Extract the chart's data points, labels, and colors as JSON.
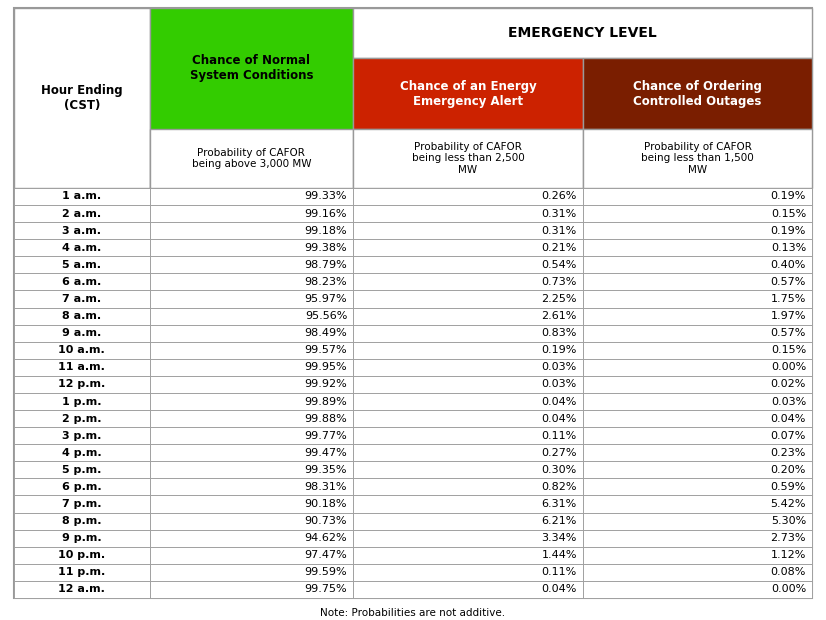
{
  "hours": [
    "1 a.m.",
    "2 a.m.",
    "3 a.m.",
    "4 a.m.",
    "5 a.m.",
    "6 a.m.",
    "7 a.m.",
    "8 a.m.",
    "9 a.m.",
    "10 a.m.",
    "11 a.m.",
    "12 p.m.",
    "1 p.m.",
    "2 p.m.",
    "3 p.m.",
    "4 p.m.",
    "5 p.m.",
    "6 p.m.",
    "7 p.m.",
    "8 p.m.",
    "9 p.m.",
    "10 p.m.",
    "11 p.m.",
    "12 a.m."
  ],
  "col1_values": [
    "99.33%",
    "99.16%",
    "99.18%",
    "99.38%",
    "98.79%",
    "98.23%",
    "95.97%",
    "95.56%",
    "98.49%",
    "99.57%",
    "99.95%",
    "99.92%",
    "99.89%",
    "99.88%",
    "99.77%",
    "99.47%",
    "99.35%",
    "98.31%",
    "90.18%",
    "90.73%",
    "94.62%",
    "97.47%",
    "99.59%",
    "99.75%"
  ],
  "col2_values": [
    "0.26%",
    "0.31%",
    "0.31%",
    "0.21%",
    "0.54%",
    "0.73%",
    "2.25%",
    "2.61%",
    "0.83%",
    "0.19%",
    "0.03%",
    "0.03%",
    "0.04%",
    "0.04%",
    "0.11%",
    "0.27%",
    "0.30%",
    "0.82%",
    "6.31%",
    "6.21%",
    "3.34%",
    "1.44%",
    "0.11%",
    "0.04%"
  ],
  "col3_values": [
    "0.19%",
    "0.15%",
    "0.19%",
    "0.13%",
    "0.40%",
    "0.57%",
    "1.75%",
    "1.97%",
    "0.57%",
    "0.15%",
    "0.00%",
    "0.02%",
    "0.03%",
    "0.04%",
    "0.07%",
    "0.23%",
    "0.20%",
    "0.59%",
    "5.42%",
    "5.30%",
    "2.73%",
    "1.12%",
    "0.08%",
    "0.00%"
  ],
  "green_bg": "#33cc00",
  "red_bg": "#cc2200",
  "brown_bg": "#7a1e00",
  "border_color": "#999999",
  "note_text": "Note: Probabilities are not additive.",
  "col_header1": "Chance of Normal\nSystem Conditions",
  "col_header2": "Chance of an Energy\nEmergency Alert",
  "col_header3": "Chance of Ordering\nControlled Outages",
  "subheader1": "Probability of CAFOR\nbeing above 3,000 MW",
  "subheader2": "Probability of CAFOR\nbeing less than 2,500\nMW",
  "subheader3": "Probability of CAFOR\nbeing less than 1,500\nMW",
  "emergency_label": "EMERGENCY LEVEL",
  "row_header": "Hour Ending\n(CST)",
  "figwidth": 8.26,
  "figheight": 6.2,
  "dpi": 100
}
